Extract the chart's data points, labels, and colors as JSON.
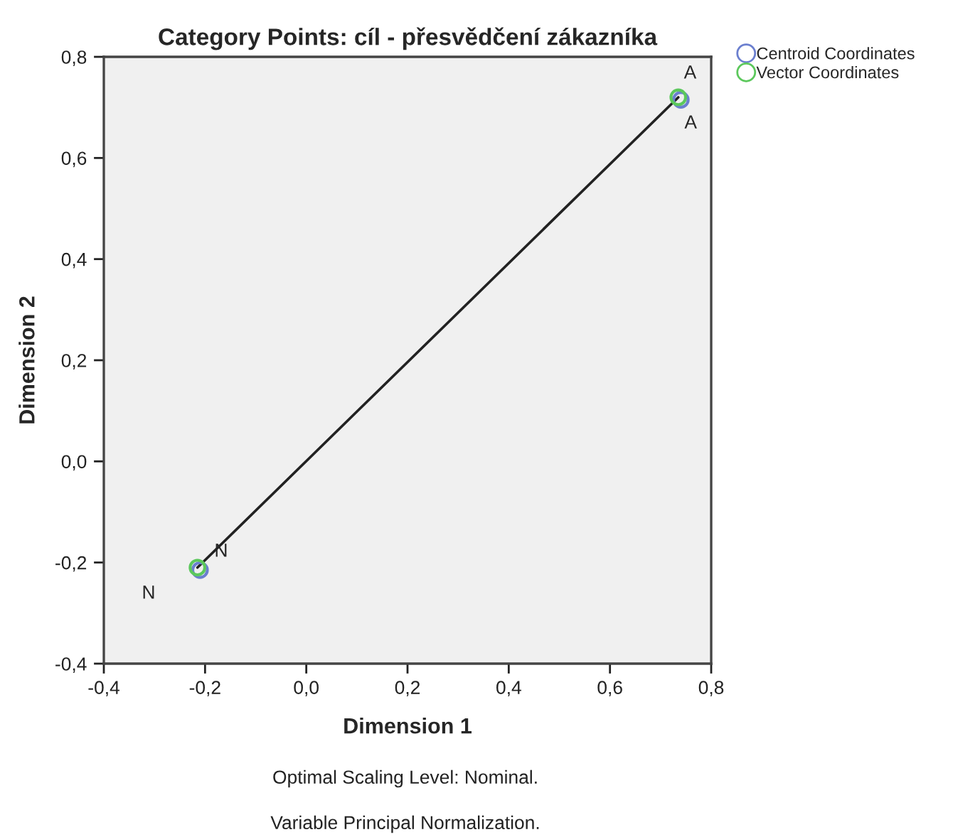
{
  "chart_data": {
    "type": "scatter",
    "title": "Category Points: cíl - přesvědčení zákazníka",
    "xlabel": "Dimension 1",
    "ylabel": "Dimension 2",
    "series": [
      {
        "type": "line",
        "color": "#222222",
        "x": [
          -0.215,
          0.735
        ],
        "values": [
          -0.21,
          0.72
        ],
        "marker": "none"
      },
      {
        "name": "Centroid Coordinates",
        "color": "#6b7fcf",
        "x": [
          0.74,
          -0.21
        ],
        "values": [
          0.715,
          -0.215
        ],
        "marker": "circle"
      },
      {
        "name": "Vector Coordinates",
        "color": "#5cc85c",
        "x": [
          0.735,
          -0.215
        ],
        "values": [
          0.72,
          -0.21
        ],
        "marker": "circle"
      }
    ],
    "xlim": [
      -0.4,
      0.8
    ],
    "ylim": [
      -0.4,
      0.8
    ],
    "xticks": [
      {
        "value": -0.4,
        "label": "-0,4"
      },
      {
        "value": -0.2,
        "label": "-0,2"
      },
      {
        "value": 0.0,
        "label": "0,0"
      },
      {
        "value": 0.2,
        "label": "0,2"
      },
      {
        "value": 0.4,
        "label": "0,4"
      },
      {
        "value": 0.6,
        "label": "0,6"
      },
      {
        "value": 0.8,
        "label": "0,8"
      }
    ],
    "yticks": [
      {
        "value": -0.4,
        "label": "-0,4"
      },
      {
        "value": -0.2,
        "label": "-0,2"
      },
      {
        "value": 0.0,
        "label": "0,0"
      },
      {
        "value": 0.2,
        "label": "0,2"
      },
      {
        "value": 0.4,
        "label": "0,4"
      },
      {
        "value": 0.6,
        "label": "0,6"
      },
      {
        "value": 0.8,
        "label": "0,8"
      }
    ],
    "annotations": [
      {
        "text": "A",
        "x": 0.735,
        "y": 0.72
      },
      {
        "text": "A",
        "x": 0.74,
        "y": 0.715
      },
      {
        "text": "N",
        "x": -0.215,
        "y": -0.21
      },
      {
        "text": "N",
        "x": -0.21,
        "y": -0.215
      },
      "Optimal Scaling Level: Nominal.",
      "Variable Principal Normalization."
    ],
    "grid": false,
    "legend": "top right"
  }
}
